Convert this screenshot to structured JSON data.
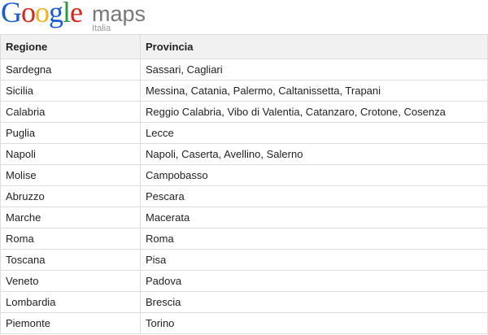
{
  "logo": {
    "brand": "Google",
    "product": "maps",
    "region": "Italia"
  },
  "table": {
    "header": [
      "Regione",
      "Provincia"
    ],
    "rows": [
      [
        "Sardegna",
        "Sassari, Cagliari"
      ],
      [
        "Sicilia",
        "Messina, Catania, Palermo, Caltanissetta, Trapani"
      ],
      [
        "Calabria",
        "Reggio Calabria, Vibo di Valentia, Catanzaro, Crotone, Cosenza"
      ],
      [
        "Puglia",
        "Lecce"
      ],
      [
        "Napoli",
        "Napoli, Caserta, Avellino, Salerno"
      ],
      [
        "Molise",
        "Campobasso"
      ],
      [
        "Abruzzo",
        "Pescara"
      ],
      [
        "Marche",
        "Macerata"
      ],
      [
        "Roma",
        "Roma"
      ],
      [
        "Toscana",
        "Pisa"
      ],
      [
        "Veneto",
        "Padova"
      ],
      [
        "Lombardia",
        "Brescia"
      ],
      [
        "Piemonte",
        "Torino"
      ]
    ]
  }
}
